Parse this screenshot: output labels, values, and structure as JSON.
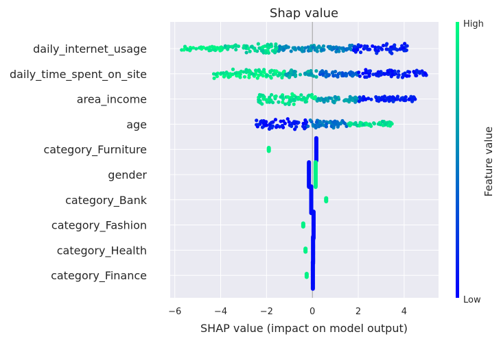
{
  "chart_data": {
    "type": "scatter",
    "title": "Shap value",
    "xlabel": "SHAP value (impact on model output)",
    "xlim": [
      -6.2,
      5.5
    ],
    "xticks": [
      -6,
      -4,
      -2,
      0,
      2,
      4
    ],
    "xtick_labels": [
      "−6",
      "−4",
      "−2",
      "0",
      "2",
      "4"
    ],
    "grid": true,
    "features": [
      {
        "name": "daily_internet_usage",
        "spread": [
          -5.7,
          4.2
        ],
        "color_trend": "high feature values on the left (negative SHAP), low on the right",
        "clusters": [
          {
            "from": -5.7,
            "to": -3.8,
            "value": 0.95,
            "width": 4
          },
          {
            "from": -3.8,
            "to": -1.5,
            "value": 0.85,
            "width": 8
          },
          {
            "from": -1.5,
            "to": 0.8,
            "value": 0.55,
            "width": 6
          },
          {
            "from": 0.8,
            "to": 1.8,
            "value": 0.45,
            "width": 5
          },
          {
            "from": 1.8,
            "to": 4.2,
            "value": 0.1,
            "width": 8
          }
        ]
      },
      {
        "name": "daily_time_spent_on_site",
        "spread": [
          -4.3,
          5.0
        ],
        "color_trend": "high feature values on the left, low on the right",
        "clusters": [
          {
            "from": -4.3,
            "to": -1.2,
            "value": 0.92,
            "width": 8
          },
          {
            "from": -1.2,
            "to": 0.2,
            "value": 0.65,
            "width": 7
          },
          {
            "from": 0.2,
            "to": 2.0,
            "value": 0.35,
            "width": 5
          },
          {
            "from": 2.0,
            "to": 5.0,
            "value": 0.08,
            "width": 7
          }
        ]
      },
      {
        "name": "area_income",
        "spread": [
          -2.4,
          4.5
        ],
        "color_trend": "high feature values on the left, low on the right",
        "clusters": [
          {
            "from": -2.4,
            "to": 0.2,
            "value": 0.9,
            "width": 9
          },
          {
            "from": 0.2,
            "to": 2.0,
            "value": 0.6,
            "width": 6
          },
          {
            "from": 2.0,
            "to": 4.5,
            "value": 0.12,
            "width": 4
          }
        ]
      },
      {
        "name": "age",
        "spread": [
          -2.5,
          3.5
        ],
        "color_trend": "low feature values on the left, high on the right",
        "clusters": [
          {
            "from": -2.5,
            "to": -0.2,
            "value": 0.08,
            "width": 8
          },
          {
            "from": -0.2,
            "to": 1.5,
            "value": 0.45,
            "width": 7
          },
          {
            "from": 1.5,
            "to": 3.5,
            "value": 0.88,
            "width": 4
          }
        ]
      },
      {
        "name": "category_Furniture",
        "points": [
          {
            "x": -1.9,
            "value": 0.95,
            "width": 3
          },
          {
            "x": 0.17,
            "value": 0.05,
            "width": 22
          }
        ]
      },
      {
        "name": "gender",
        "points": [
          {
            "x": -0.15,
            "value": 0.05,
            "width": 24
          },
          {
            "x": 0.14,
            "value": 0.95,
            "width": 24
          }
        ]
      },
      {
        "name": "category_Bank",
        "points": [
          {
            "x": -0.05,
            "value": 0.05,
            "width": 26
          },
          {
            "x": 0.6,
            "value": 0.95,
            "width": 3
          }
        ]
      },
      {
        "name": "category_Fashion",
        "points": [
          {
            "x": -0.4,
            "value": 0.95,
            "width": 3
          },
          {
            "x": 0.05,
            "value": 0.05,
            "width": 26
          }
        ]
      },
      {
        "name": "category_Health",
        "points": [
          {
            "x": -0.3,
            "value": 0.95,
            "width": 3
          },
          {
            "x": 0.03,
            "value": 0.05,
            "width": 26
          }
        ]
      },
      {
        "name": "category_Finance",
        "points": [
          {
            "x": -0.25,
            "value": 0.95,
            "width": 3
          },
          {
            "x": 0.02,
            "value": 0.05,
            "width": 26
          }
        ]
      }
    ],
    "colorbar": {
      "label": "Feature value",
      "high_label": "High",
      "low_label": "Low",
      "color_low": "#0000ff",
      "color_high": "#00ff80"
    },
    "plot_background": "#eaeaf2",
    "grid_color": "#ffffff"
  }
}
